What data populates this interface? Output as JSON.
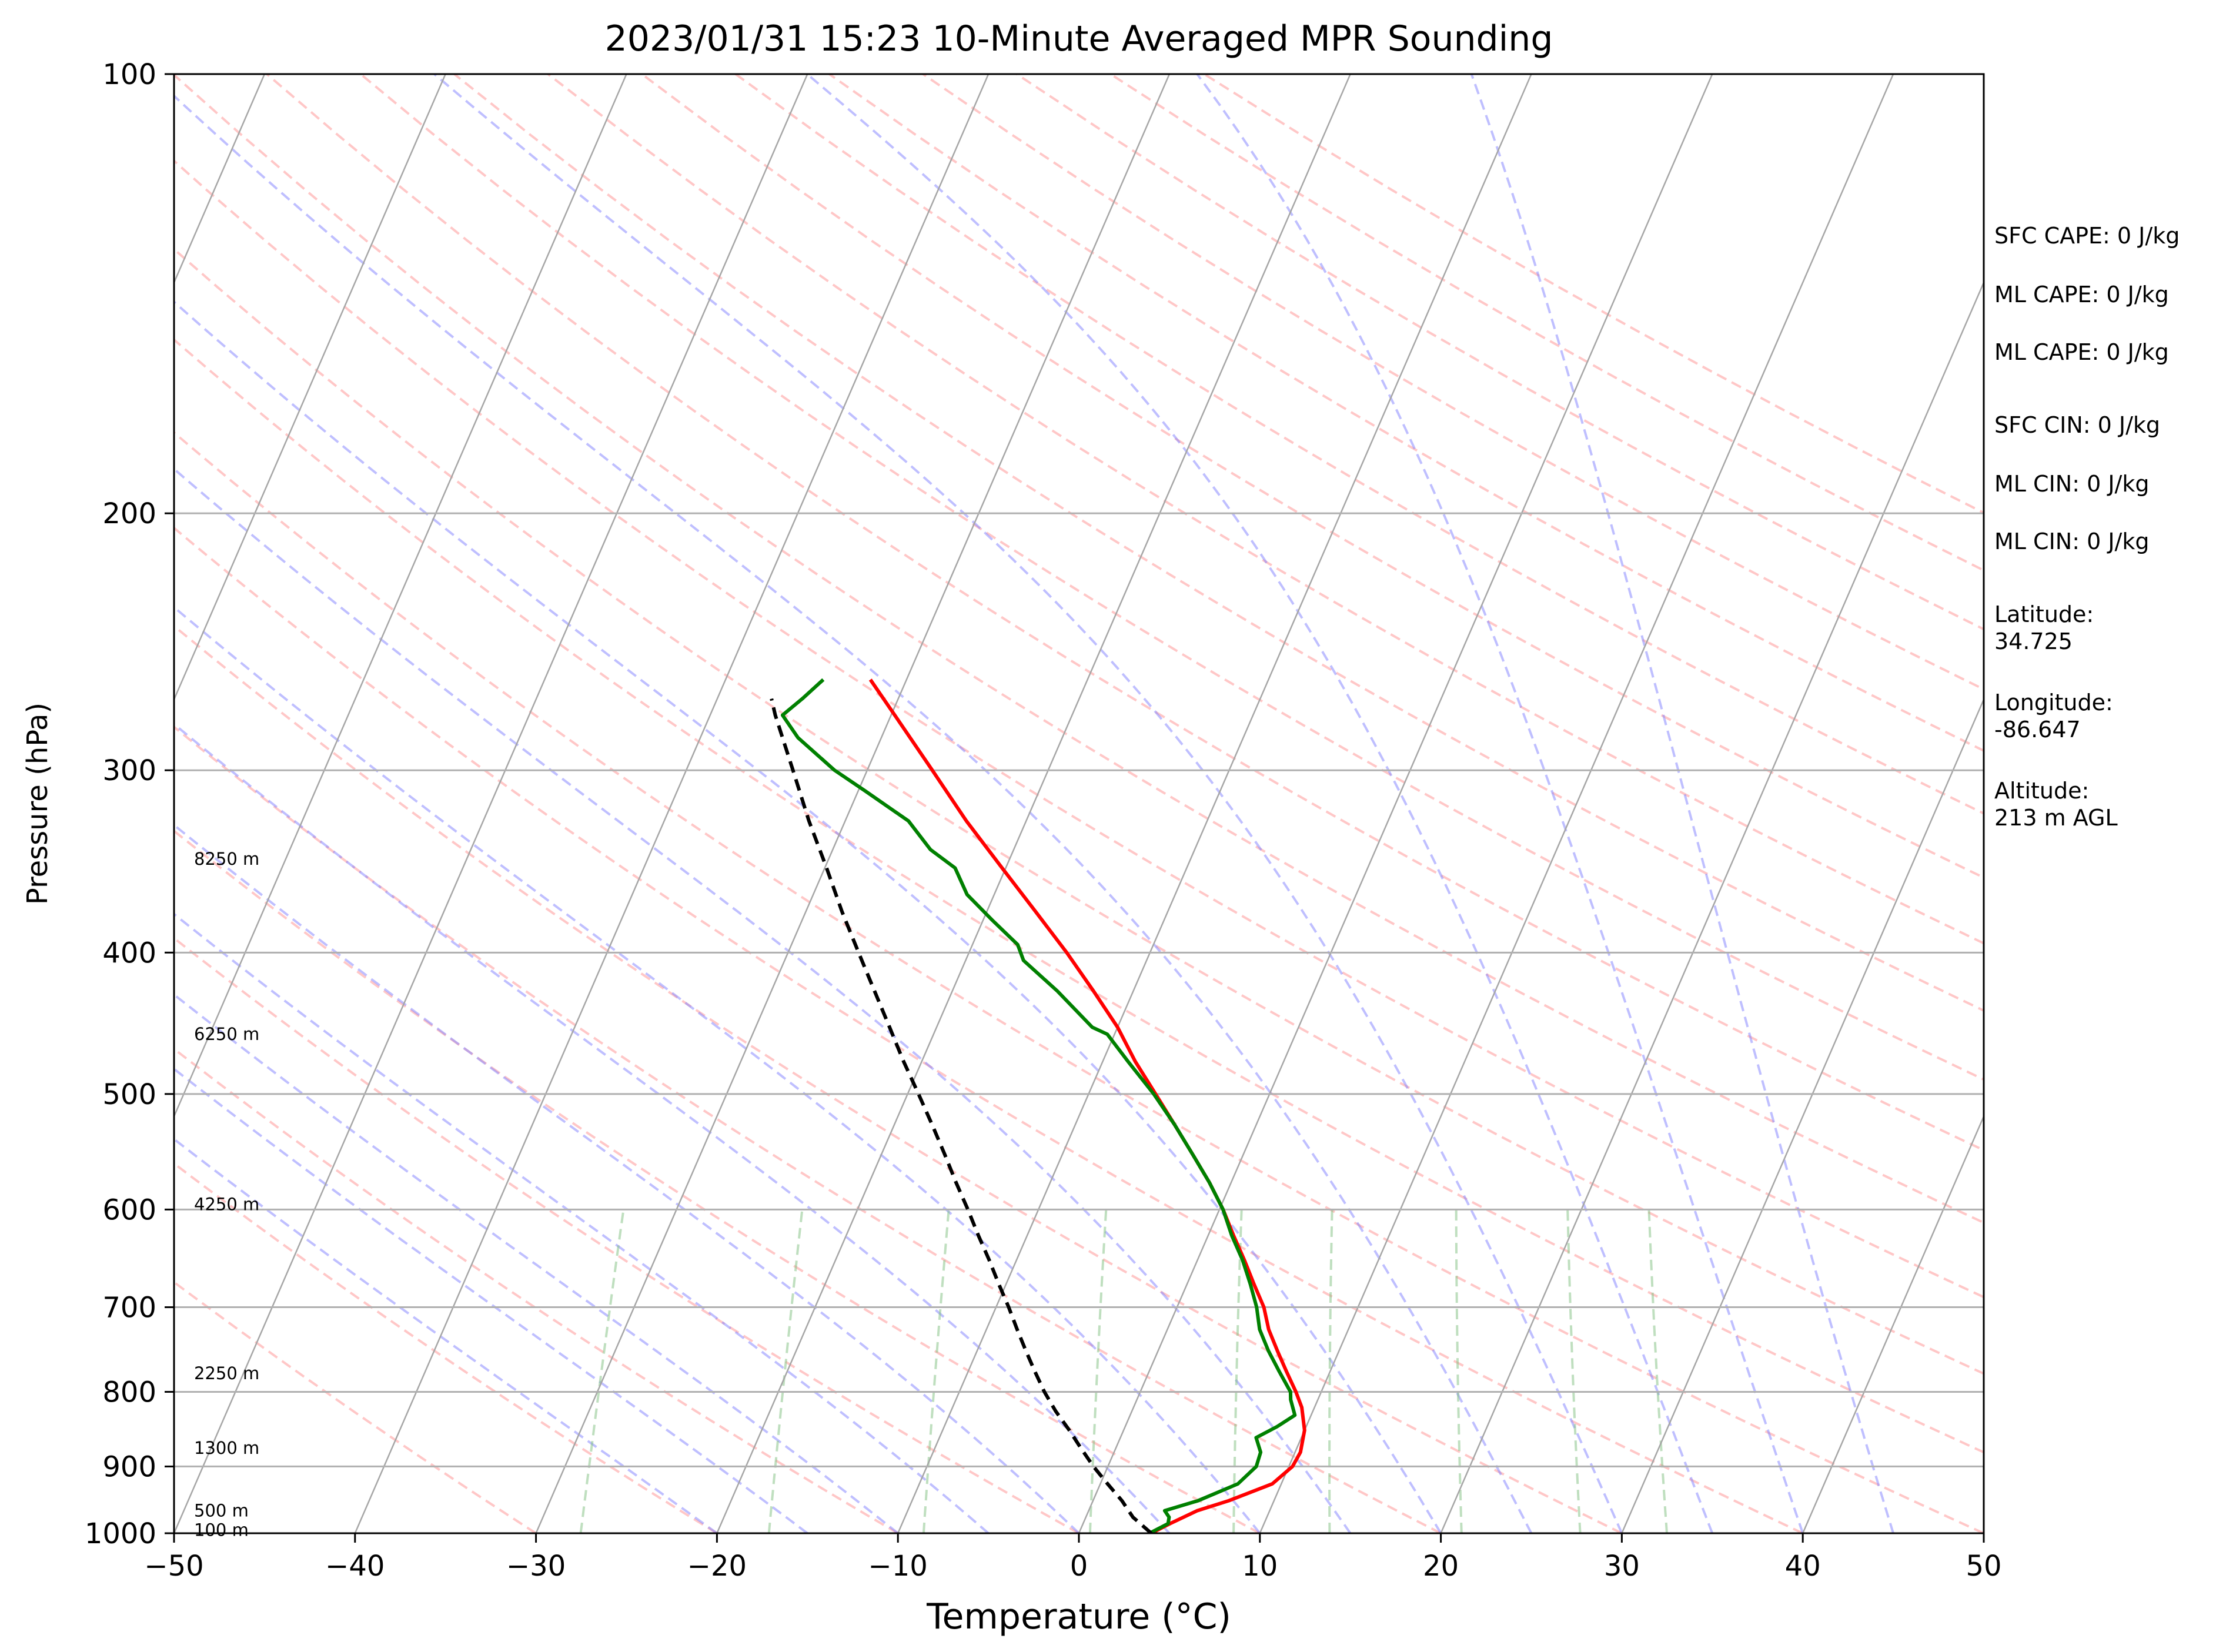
{
  "chart_data": {
    "type": "line",
    "title": "2023/01/31 15:23 10-Minute Averaged MPR Sounding",
    "xlabel": "Temperature (°C)",
    "ylabel": "Pressure (hPa)",
    "xlim": [
      -50,
      50
    ],
    "ylim": [
      1000,
      100
    ],
    "y_scale": "log",
    "x_ticks": [
      "−50",
      "−40",
      "−30",
      "−20",
      "−10",
      "0",
      "10",
      "20",
      "30",
      "40",
      "50"
    ],
    "x_tick_values": [
      -50,
      -40,
      -30,
      -20,
      -10,
      0,
      10,
      20,
      30,
      40,
      50
    ],
    "y_ticks": [
      "100",
      "200",
      "300",
      "400",
      "500",
      "600",
      "700",
      "800",
      "900",
      "1000"
    ],
    "y_tick_values": [
      100,
      200,
      300,
      400,
      500,
      600,
      700,
      800,
      900,
      1000
    ],
    "skew_deg_per_log10_p": 35,
    "grid": true,
    "colors": {
      "temperature": "#ff0000",
      "dewpoint": "#008000",
      "parcel": "#000000",
      "isotherm": "#a6a6a6",
      "dry_adiabat": "#ff9999",
      "moist_adiabat": "#8080ff",
      "mixing_ratio": "#80c080"
    },
    "series": [
      {
        "key": "temperature",
        "points": [
          [
            4.0,
            1000
          ],
          [
            4.8,
            985
          ],
          [
            6.0,
            965
          ],
          [
            7.5,
            950
          ],
          [
            9.5,
            925
          ],
          [
            10.2,
            900
          ],
          [
            10.3,
            880
          ],
          [
            10.0,
            850
          ],
          [
            9.3,
            820
          ],
          [
            8.6,
            800
          ],
          [
            7.6,
            775
          ],
          [
            6.6,
            750
          ],
          [
            5.6,
            725
          ],
          [
            4.8,
            700
          ],
          [
            3.7,
            675
          ],
          [
            2.6,
            650
          ],
          [
            1.4,
            625
          ],
          [
            0.2,
            600
          ],
          [
            -1.2,
            575
          ],
          [
            -2.8,
            550
          ],
          [
            -4.5,
            525
          ],
          [
            -6.3,
            500
          ],
          [
            -8.2,
            475
          ],
          [
            -10.0,
            450
          ],
          [
            -12.2,
            425
          ],
          [
            -14.6,
            400
          ],
          [
            -17.3,
            375
          ],
          [
            -20.2,
            350
          ],
          [
            -23.3,
            325
          ],
          [
            -26.4,
            300
          ],
          [
            -29.8,
            275
          ],
          [
            -32.0,
            260
          ]
        ]
      },
      {
        "key": "dewpoint",
        "points": [
          [
            3.9,
            1000
          ],
          [
            4.7,
            985
          ],
          [
            4.6,
            975
          ],
          [
            4.2,
            965
          ],
          [
            5.8,
            950
          ],
          [
            7.6,
            925
          ],
          [
            8.2,
            900
          ],
          [
            8.1,
            880
          ],
          [
            7.5,
            860
          ],
          [
            8.4,
            845
          ],
          [
            9.1,
            830
          ],
          [
            8.5,
            810
          ],
          [
            8.3,
            800
          ],
          [
            7.2,
            775
          ],
          [
            6.1,
            750
          ],
          [
            5.1,
            725
          ],
          [
            4.4,
            700
          ],
          [
            3.5,
            675
          ],
          [
            2.5,
            650
          ],
          [
            1.3,
            625
          ],
          [
            0.2,
            600
          ],
          [
            -1.2,
            575
          ],
          [
            -2.8,
            550
          ],
          [
            -4.5,
            525
          ],
          [
            -6.4,
            500
          ],
          [
            -8.6,
            475
          ],
          [
            -10.4,
            455
          ],
          [
            -11.4,
            450
          ],
          [
            -14.2,
            425
          ],
          [
            -16.8,
            405
          ],
          [
            -17.5,
            395
          ],
          [
            -19.5,
            380
          ],
          [
            -21.5,
            365
          ],
          [
            -22.8,
            350
          ],
          [
            -24.6,
            340
          ],
          [
            -26.5,
            325
          ],
          [
            -29.6,
            310
          ],
          [
            -31.8,
            300
          ],
          [
            -34.6,
            285
          ],
          [
            -36.0,
            275
          ],
          [
            -35.3,
            268
          ],
          [
            -34.6,
            260
          ]
        ]
      },
      {
        "key": "parcel",
        "points": [
          [
            4.0,
            1000
          ],
          [
            2.6,
            975
          ],
          [
            1.6,
            950
          ],
          [
            0.4,
            925
          ],
          [
            -0.8,
            900
          ],
          [
            -1.9,
            875
          ],
          [
            -3.0,
            850
          ],
          [
            -4.2,
            825
          ],
          [
            -5.3,
            800
          ],
          [
            -6.3,
            775
          ],
          [
            -7.3,
            750
          ],
          [
            -8.3,
            725
          ],
          [
            -9.3,
            700
          ],
          [
            -10.4,
            675
          ],
          [
            -11.5,
            650
          ],
          [
            -12.7,
            625
          ],
          [
            -13.9,
            600
          ],
          [
            -15.2,
            575
          ],
          [
            -16.5,
            550
          ],
          [
            -17.9,
            525
          ],
          [
            -19.4,
            500
          ],
          [
            -21.0,
            475
          ],
          [
            -22.6,
            450
          ],
          [
            -24.3,
            425
          ],
          [
            -26.1,
            400
          ],
          [
            -28.0,
            375
          ],
          [
            -29.9,
            350
          ],
          [
            -32.0,
            325
          ],
          [
            -34.1,
            300
          ],
          [
            -36.4,
            275
          ],
          [
            -37.0,
            268
          ]
        ]
      }
    ],
    "height_labels": [
      {
        "text": "8250 m",
        "p": 345
      },
      {
        "text": "6250 m",
        "p": 455
      },
      {
        "text": "4250 m",
        "p": 595
      },
      {
        "text": "2250 m",
        "p": 777
      },
      {
        "text": "1300 m",
        "p": 874
      },
      {
        "text": "500 m",
        "p": 965
      },
      {
        "text": "100 m",
        "p": 995
      }
    ],
    "annotations": [
      "SFC CAPE: 0 J/kg",
      "ML CAPE: 0 J/kg",
      "ML CAPE: 0 J/kg",
      "SFC CIN: 0 J/kg",
      "ML CIN: 0 J/kg",
      "ML CIN: 0 J/kg",
      "Latitude:\n34.725",
      "Longitude:\n-86.647",
      "Altitude:\n213 m AGL"
    ]
  }
}
